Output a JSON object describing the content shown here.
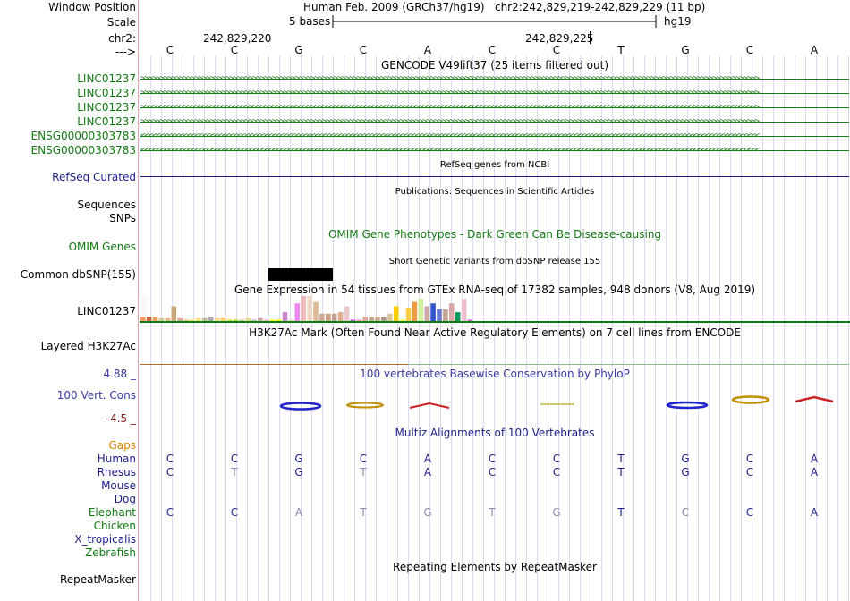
{
  "header": {
    "window_position_label": "Window Position",
    "assembly_text": "Human Feb. 2009 (GRCh37/hg19)",
    "position_text": "chr2:242,829,219-242,829,229 (11 bp)",
    "scale_label": "Scale",
    "scale_text": "5 bases",
    "db_label": "hg19",
    "chr_label": "chr2:",
    "pos1": "242,829,220",
    "pos2": "242,829,225",
    "arrow_label": "--->"
  },
  "bases": [
    "C",
    "C",
    "G",
    "C",
    "A",
    "C",
    "C",
    "T",
    "G",
    "C",
    "A"
  ],
  "gencode": {
    "title": "GENCODE V49lift37 (25 items filtered out)",
    "tracks": [
      {
        "name": "LINC01237",
        "strand": "+"
      },
      {
        "name": "LINC01237",
        "strand": "+"
      },
      {
        "name": "LINC01237",
        "strand": "+"
      },
      {
        "name": "LINC01237",
        "strand": "+"
      },
      {
        "name": "ENSG00000303783",
        "strand": "-"
      },
      {
        "name": "ENSG00000303783",
        "strand": "-"
      }
    ]
  },
  "refseq": {
    "title": "RefSeq genes from NCBI",
    "label": "RefSeq Curated"
  },
  "publications": {
    "title": "Publications: Sequences in Scientific Articles",
    "label": "Sequences"
  },
  "snps_label": "SNPs",
  "omim": {
    "title": "OMIM Gene Phenotypes - Dark Green Can Be Disease-causing",
    "label": "OMIM Genes"
  },
  "dbsnp": {
    "title": "Short Genetic Variants from dbSNP release 155",
    "label": "Common dbSNP(155)"
  },
  "gtex": {
    "title": "Gene Expression in 54 tissues from GTEx RNA-seq of 17382 samples, 948 donors (V8, Aug 2019)",
    "label": "LINC01237",
    "values": [
      3,
      3,
      3,
      2,
      2,
      10,
      2,
      1,
      1,
      2,
      2,
      3,
      2,
      2,
      1,
      1,
      1,
      2,
      1,
      2,
      1,
      1,
      1,
      6,
      1,
      12,
      17,
      17,
      13,
      5,
      5,
      5,
      6,
      10,
      1,
      1,
      3,
      3,
      3,
      3,
      5,
      10,
      1,
      9,
      13,
      15,
      10,
      12,
      8,
      8,
      12,
      6,
      15,
      1
    ],
    "colors": [
      "#ff9966",
      "#cc6644",
      "#e8a060",
      "#cccc99",
      "#ddbb88",
      "#c8a878",
      "#d8a898",
      "#f0c080",
      "#ffe060",
      "#f8e070",
      "#bbbb99",
      "#aaaaaa",
      "#eedd88",
      "#ffd060",
      "#ccdd44",
      "#aadd33",
      "#d0c090",
      "#e0e090",
      "#c0c0c0",
      "#c8a8a8",
      "#ddbbbb",
      "#ffff00",
      "#eeee00",
      "#cc88cc",
      "#f0d0c0",
      "#ee88ee",
      "#eebbbb",
      "#f0d8c8",
      "#ddbb99",
      "#ccaa99",
      "#c8a080",
      "#c0a090",
      "#d8b090",
      "#e8c8c8",
      "#aa66cc",
      "#ff99cc",
      "#ddaa99",
      "#bbaa88",
      "#ccaa88",
      "#aa9988",
      "#d8c898",
      "#ffcc00",
      "#ffff33",
      "#ffcc44",
      "#ee9944",
      "#ccee99",
      "#ccaaaa",
      "#3355cc",
      "#6677cc",
      "#c0a090",
      "#d8a8a8",
      "#009955",
      "#eebbcc",
      "#cc66cc"
    ]
  },
  "h3k27ac": {
    "title": "H3K27Ac Mark (Often Found Near Active Regulatory Elements) on 7 cell lines from ENCODE",
    "label": "Layered H3K27Ac"
  },
  "cons": {
    "title": "100 vertebrates Basewise Conservation by PhyloP",
    "label": "100 Vert. Cons",
    "max": "4.88 _",
    "min": "-4.5 _"
  },
  "multiz": {
    "title": "Multiz Alignments of 100 Vertebrates",
    "gaps_label": "Gaps",
    "species": [
      {
        "name": "Human",
        "bases": [
          "C",
          "C",
          "G",
          "C",
          "A",
          "C",
          "C",
          "T",
          "G",
          "C",
          "A"
        ]
      },
      {
        "name": "Rhesus",
        "bases": [
          "C",
          "T",
          "G",
          "T",
          "A",
          "C",
          "C",
          "T",
          "G",
          "C",
          "A"
        ]
      },
      {
        "name": "Mouse",
        "bases": []
      },
      {
        "name": "Dog",
        "bases": []
      },
      {
        "name": "Elephant",
        "bases": [
          "C",
          "C",
          "A",
          "T",
          "G",
          "T",
          "G",
          "T",
          "C",
          "C",
          "A"
        ]
      },
      {
        "name": "Chicken",
        "bases": []
      },
      {
        "name": "X_tropicalis",
        "bases": []
      },
      {
        "name": "Zebrafish",
        "bases": []
      }
    ]
  },
  "repeatmasker": {
    "title": "Repeating Elements by RepeatMasker",
    "label": "RepeatMasker"
  }
}
